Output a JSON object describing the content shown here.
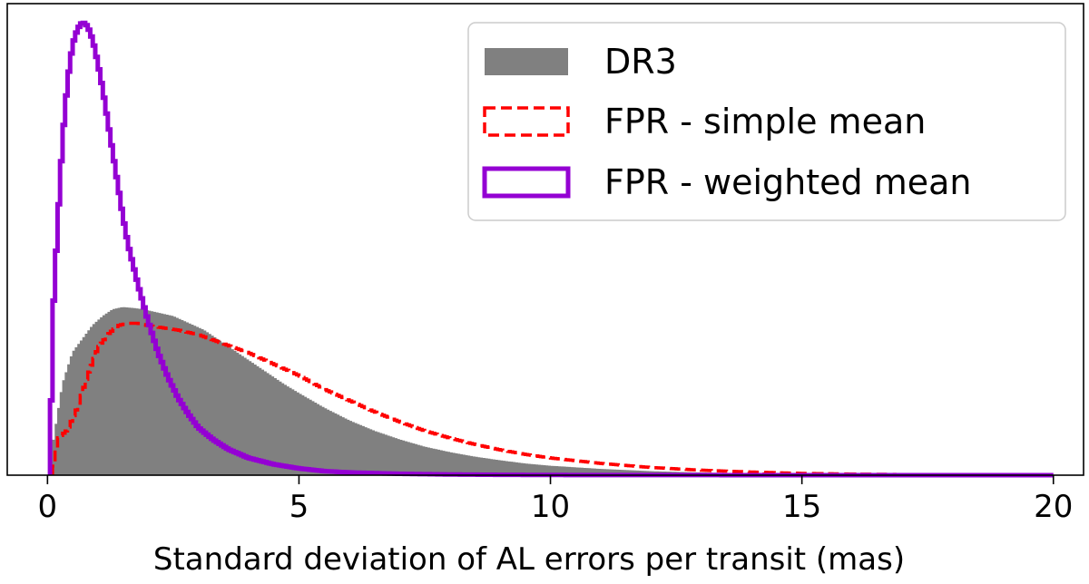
{
  "chart_data": {
    "type": "histogram",
    "title": "",
    "xlabel": "Standard deviation of AL errors per transit (mas)",
    "ylabel": "",
    "xlim": [
      -0.8,
      20.6
    ],
    "ylim": [
      0,
      1.0
    ],
    "x_ticks": [
      "0",
      "5",
      "10",
      "15",
      "20"
    ],
    "y_ticks": [],
    "grid": false,
    "legend_position": "top-right",
    "series": [
      {
        "name": "DR3",
        "style": "filled",
        "color": "#808080",
        "x": [
          0.1,
          0.3,
          0.5,
          0.7,
          0.9,
          1.1,
          1.3,
          1.5,
          1.7,
          1.9,
          2.1,
          2.3,
          2.5,
          2.7,
          2.9,
          3.1,
          3.3,
          3.5,
          3.7,
          3.9,
          4.1,
          4.3,
          4.5,
          4.7,
          5.0,
          5.5,
          6.0,
          6.5,
          7.0,
          7.5,
          8.0,
          8.5,
          9.0,
          9.5,
          10.0,
          11.0,
          12.0,
          13.0,
          14.0,
          15.0,
          16.0,
          17.0,
          18.0,
          19.0,
          20.0
        ],
        "y": [
          0.06,
          0.2,
          0.27,
          0.3,
          0.33,
          0.35,
          0.365,
          0.37,
          0.368,
          0.365,
          0.36,
          0.355,
          0.35,
          0.34,
          0.33,
          0.32,
          0.305,
          0.29,
          0.275,
          0.26,
          0.245,
          0.23,
          0.215,
          0.2,
          0.18,
          0.148,
          0.12,
          0.097,
          0.078,
          0.062,
          0.05,
          0.04,
          0.032,
          0.025,
          0.02,
          0.013,
          0.008,
          0.005,
          0.003,
          0.002,
          0.001,
          0.0007,
          0.0004,
          0.0002,
          0.0
        ]
      },
      {
        "name": "FPR - simple mean",
        "style": "dashed",
        "color": "#ff0000",
        "x": [
          0.1,
          0.2,
          0.4,
          0.6,
          0.8,
          1.0,
          1.2,
          1.4,
          1.6,
          1.8,
          2.0,
          2.3,
          2.6,
          3.0,
          3.5,
          4.0,
          4.5,
          5.0,
          5.5,
          6.0,
          6.5,
          7.0,
          7.5,
          8.0,
          8.5,
          9.0,
          9.5,
          10.0,
          11.0,
          12.0,
          13.0,
          14.0,
          15.0,
          16.0,
          17.0,
          18.0,
          19.0,
          20.0
        ],
        "y": [
          0.0,
          0.08,
          0.1,
          0.15,
          0.22,
          0.28,
          0.31,
          0.33,
          0.335,
          0.335,
          0.33,
          0.325,
          0.32,
          0.31,
          0.29,
          0.27,
          0.245,
          0.22,
          0.19,
          0.165,
          0.14,
          0.118,
          0.098,
          0.082,
          0.068,
          0.056,
          0.046,
          0.038,
          0.026,
          0.017,
          0.011,
          0.007,
          0.004,
          0.0025,
          0.0015,
          0.0008,
          0.0004,
          0.0
        ]
      },
      {
        "name": "FPR - weighted mean",
        "style": "outline",
        "color": "#9400d3",
        "x": [
          0.05,
          0.1,
          0.2,
          0.3,
          0.4,
          0.5,
          0.6,
          0.7,
          0.8,
          0.9,
          1.0,
          1.1,
          1.2,
          1.3,
          1.4,
          1.5,
          1.6,
          1.8,
          2.0,
          2.2,
          2.4,
          2.6,
          2.8,
          3.0,
          3.3,
          3.6,
          4.0,
          4.5,
          5.0,
          5.5,
          6.0,
          7.0,
          8.0,
          9.0,
          10.0,
          12.0,
          14.0,
          16.0,
          18.0,
          20.0
        ],
        "y": [
          0.0,
          0.33,
          0.55,
          0.74,
          0.87,
          0.95,
          0.985,
          1.0,
          0.99,
          0.96,
          0.91,
          0.85,
          0.78,
          0.71,
          0.64,
          0.57,
          0.51,
          0.42,
          0.34,
          0.27,
          0.215,
          0.17,
          0.135,
          0.105,
          0.078,
          0.057,
          0.038,
          0.024,
          0.015,
          0.009,
          0.006,
          0.003,
          0.0015,
          0.0008,
          0.0004,
          0.0002,
          0.0001,
          0.0,
          0.0,
          0.0
        ]
      }
    ]
  }
}
